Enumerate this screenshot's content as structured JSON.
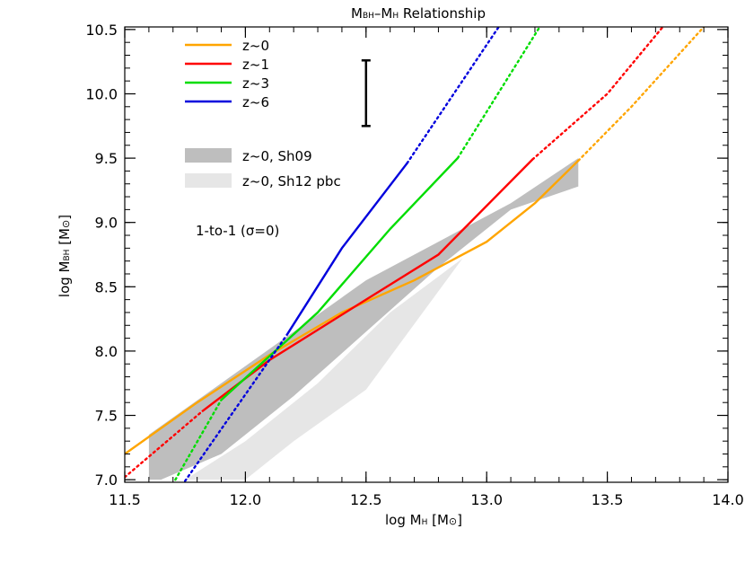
{
  "chart_data": {
    "type": "line",
    "title": "M_BH–M_H Relationship",
    "title_main": "M",
    "title_sub1": "BH",
    "title_mid": "–M",
    "title_sub2": "H",
    "title_tail": " Relationship",
    "xlabel_pre": "log M",
    "xlabel_sub": "H",
    "xlabel_post": " [M",
    "xlabel_sym": "⊙",
    "xlabel_end": "]",
    "ylabel_pre": "log M",
    "ylabel_sub": "BH",
    "ylabel_post": " [M",
    "ylabel_sym": "⊙",
    "ylabel_end": "]",
    "xlim": [
      11.5,
      14.0
    ],
    "ylim": [
      6.98,
      10.52
    ],
    "xticks": [
      "11.5",
      "12.0",
      "12.5",
      "13.0",
      "13.5",
      "14.0"
    ],
    "yticks": [
      "7.0",
      "7.5",
      "8.0",
      "8.5",
      "9.0",
      "9.5",
      "10.0",
      "10.5"
    ],
    "annotation": "1-to-1 (σ=0)",
    "error_bar": {
      "x": 12.5,
      "y_low": 9.75,
      "y_high": 10.26
    },
    "legend_placement": "top-left",
    "series": [
      {
        "name": "z~0",
        "color": "#ffa500",
        "solid_x": [
          11.5,
          11.8,
          12.1,
          12.4,
          12.7,
          13.0,
          13.2,
          13.38
        ],
        "solid_y": [
          7.2,
          7.6,
          7.97,
          8.3,
          8.55,
          8.85,
          9.15,
          9.48
        ],
        "dotted_x": [
          13.38,
          13.6,
          13.9
        ],
        "dotted_y": [
          9.48,
          9.9,
          10.52
        ]
      },
      {
        "name": "z~1",
        "color": "#ff0000",
        "solid_x": [
          11.82,
          12.1,
          12.5,
          12.8,
          13.19
        ],
        "solid_y": [
          7.53,
          7.93,
          8.4,
          8.75,
          9.49
        ],
        "dotted_x": [
          11.5,
          11.82,
          13.19,
          13.5,
          13.73
        ],
        "dotted_y": [
          7.02,
          7.53,
          9.49,
          10.0,
          10.52
        ]
      },
      {
        "name": "z~3",
        "color": "#00dd00",
        "solid_x": [
          11.9,
          12.3,
          12.6,
          12.88
        ],
        "solid_y": [
          7.62,
          8.3,
          8.95,
          9.5
        ],
        "dotted_x": [
          11.71,
          11.9,
          12.88,
          13.22
        ],
        "dotted_y": [
          7.0,
          7.62,
          9.5,
          10.52
        ]
      },
      {
        "name": "z~6",
        "color": "#0000dd",
        "solid_x": [
          12.17,
          12.4,
          12.67
        ],
        "solid_y": [
          8.12,
          8.8,
          9.46
        ],
        "dotted_x": [
          11.75,
          12.17,
          12.67,
          13.05
        ],
        "dotted_y": [
          6.99,
          8.12,
          9.46,
          10.52
        ]
      }
    ],
    "bands": [
      {
        "name": "z~0, Sh09",
        "color": "#bebebe",
        "upper_x": [
          11.6,
          11.9,
          12.2,
          12.5,
          12.8,
          13.1,
          13.38
        ],
        "upper_y": [
          7.35,
          7.75,
          8.15,
          8.55,
          8.85,
          9.15,
          9.5
        ],
        "lower_x": [
          13.38,
          13.1,
          12.8,
          12.5,
          12.2,
          11.9,
          11.65,
          11.6
        ],
        "lower_y": [
          9.28,
          9.1,
          8.65,
          8.15,
          7.65,
          7.2,
          7.0,
          7.0
        ]
      },
      {
        "name": "z~0, Sh12 pbc",
        "color": "#e6e6e6",
        "upper_x": [
          11.75,
          12.0,
          12.3,
          12.6,
          12.9
        ],
        "upper_y": [
          7.0,
          7.3,
          7.75,
          8.3,
          8.72
        ],
        "lower_x": [
          12.9,
          12.5,
          12.2,
          12.0
        ],
        "lower_y": [
          8.72,
          7.7,
          7.3,
          7.0
        ]
      }
    ]
  }
}
